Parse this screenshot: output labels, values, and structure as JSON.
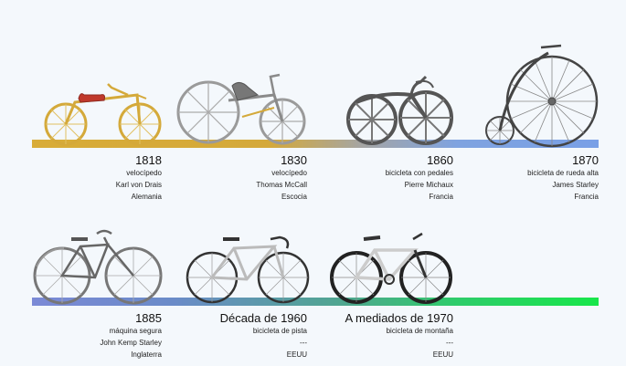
{
  "timeline": {
    "entries": [
      {
        "year": "1818",
        "type": "velocípedo",
        "inventor": "Karl von Drais",
        "country": "Alemania",
        "icon": "draisine-icon"
      },
      {
        "year": "1830",
        "type": "velocípedo",
        "inventor": "Thomas McCall",
        "country": "Escocia",
        "icon": "mccall-velocipede-icon"
      },
      {
        "year": "1860",
        "type": "bicicleta con pedales",
        "inventor": "Pierre Michaux",
        "country": "Francia",
        "icon": "boneshaker-icon"
      },
      {
        "year": "1870",
        "type": "bicicleta de rueda alta",
        "inventor": "James Starley",
        "country": "Francia",
        "icon": "penny-farthing-icon"
      },
      {
        "year": "1885",
        "type": "máquina segura",
        "inventor": "John Kemp Starley",
        "country": "Inglaterra",
        "icon": "safety-bicycle-icon"
      },
      {
        "year": "Década de 1960",
        "type": "bicicleta de pista",
        "inventor": "---",
        "country": "EEUU",
        "icon": "track-bicycle-icon"
      },
      {
        "year": "A mediados de 1970",
        "type": "bicicleta de montaña",
        "inventor": "---",
        "country": "EEUU",
        "icon": "mountain-bike-icon"
      }
    ]
  },
  "colors": {
    "gold": "#d4a93a",
    "grey_metal": "#8a8a8a",
    "dark_metal": "#555555",
    "saddle_red": "#c0392b"
  }
}
